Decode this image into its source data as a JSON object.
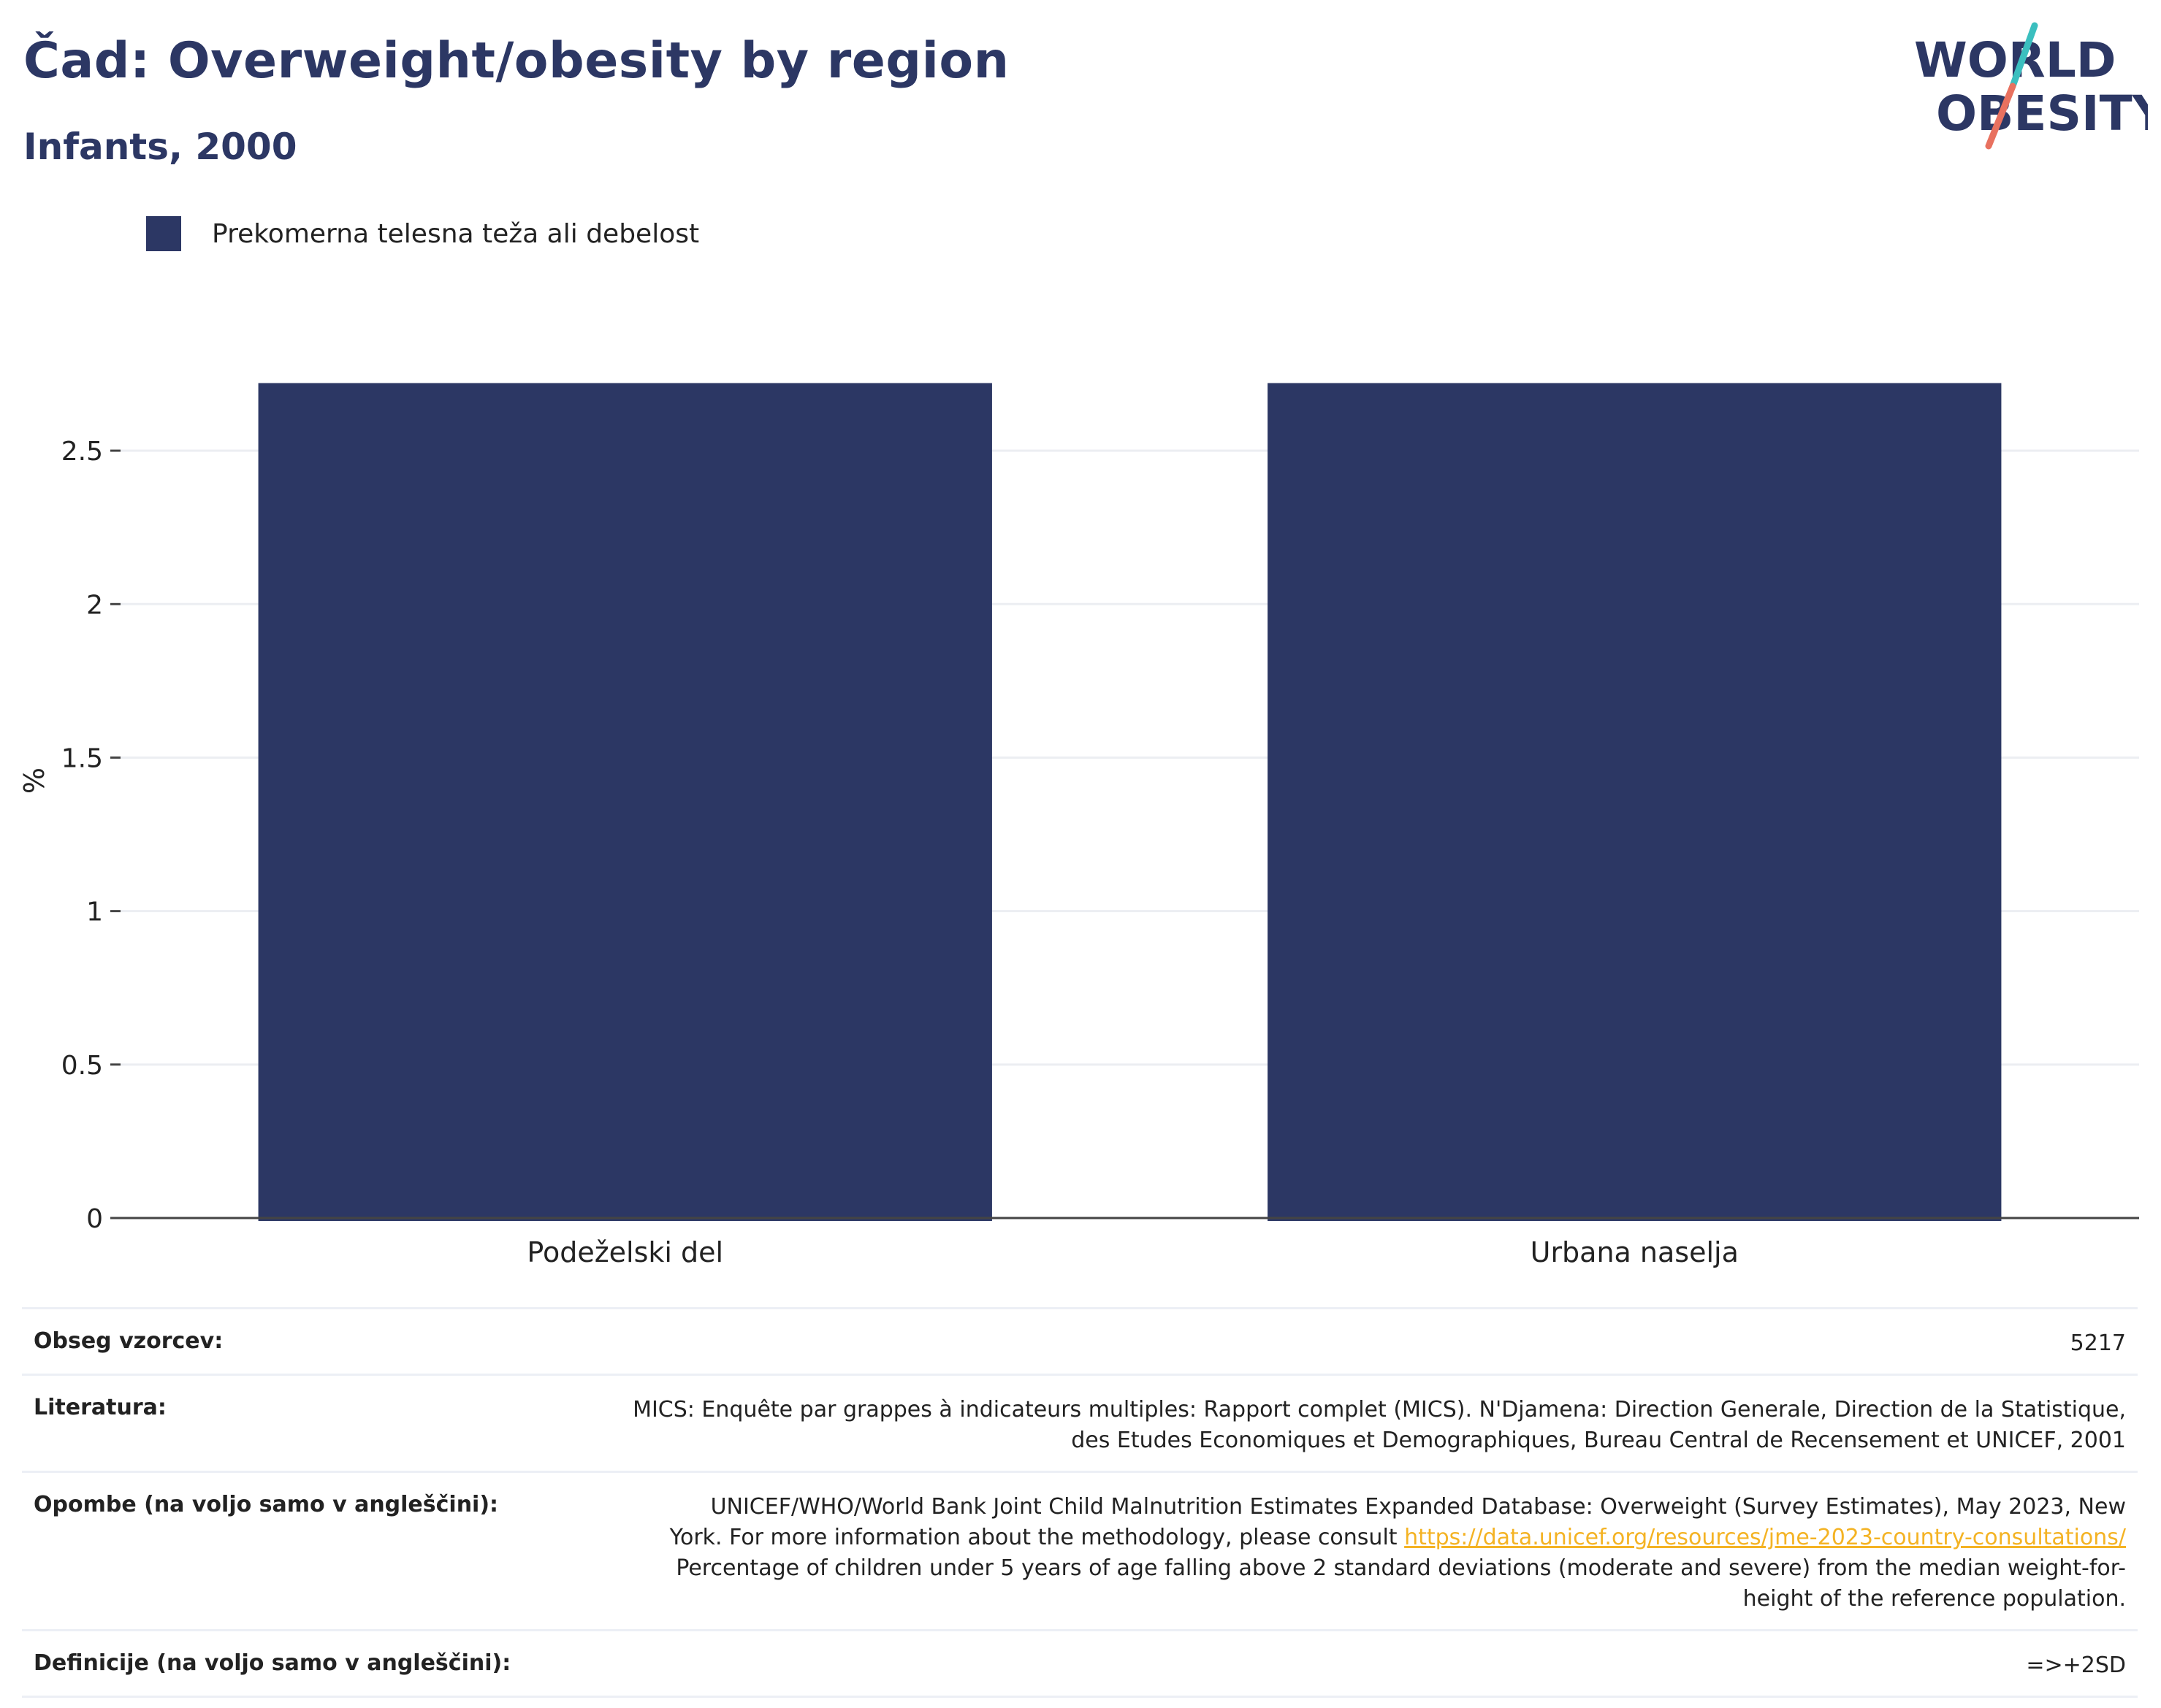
{
  "header": {
    "title": "Čad: Overweight/obesity by region",
    "subtitle": "Infants, 2000"
  },
  "logo": {
    "line1": "WORLD",
    "line2": "OBESITY"
  },
  "chart_data": {
    "type": "bar",
    "categories": [
      "Podeželski del",
      "Urbana naselja"
    ],
    "series": [
      {
        "name": "Prekomerna telesna teža ali debelost",
        "values": [
          2.72,
          2.72
        ],
        "color": "#2c3764"
      }
    ],
    "ylabel": "%",
    "ylim": [
      0,
      2.85
    ],
    "yticks": [
      0,
      0.5,
      1,
      1.5,
      2,
      2.5
    ],
    "ytick_labels": [
      "0",
      "0.5",
      "1",
      "1.5",
      "2",
      "2.5"
    ],
    "grid": true,
    "legend_position": "top-left"
  },
  "info": {
    "sample_size_label": "Obseg vzorcev:",
    "sample_size_value": "5217",
    "literature_label": "Literatura:",
    "literature_line1": "MICS: Enquête par grappes à indicateurs multiples: Rapport complet (MICS). N'Djamena: Direction Generale, Direction de la Statistique,",
    "literature_line2": "des Etudes Economiques et Demographiques, Bureau Central de Recensement et UNICEF, 2001",
    "notes_label": "Opombe (na voljo samo v angleščini):",
    "notes_line1": "UNICEF/WHO/World Bank Joint Child Malnutrition Estimates Expanded Database: Overweight (Survey Estimates), May 2023, New",
    "notes_line2_pre": "York. For more information about the methodology, please consult ",
    "notes_link": "https://data.unicef.org/resources/jme-2023-country-consultations/",
    "notes_line3": "Percentage of children under 5 years of age falling above 2 standard deviations (moderate and severe) from the median weight-for-",
    "notes_line4": "height of the reference population.",
    "definitions_label": "Definicije (na voljo samo v angleščini):",
    "definitions_value": "=>+2SD"
  },
  "colors": {
    "brand_navy": "#2c3764",
    "accent_teal": "#3bbfbf",
    "accent_coral": "#e8715f",
    "link": "#f4b324"
  }
}
